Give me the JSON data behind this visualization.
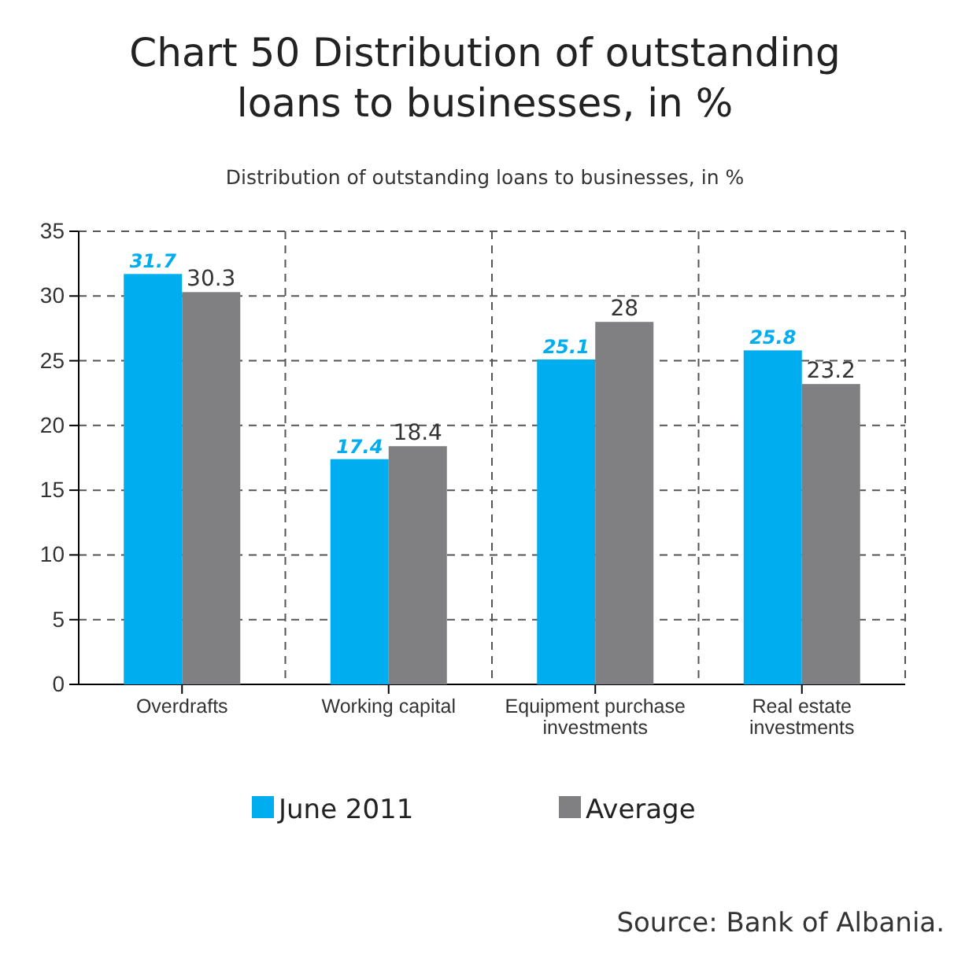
{
  "chart_data": {
    "type": "bar",
    "title": "Chart 50 Distribution of outstanding loans to businesses, in %",
    "subtitle": "Distribution of outstanding loans to businesses, in %",
    "categories": [
      "Overdrafts",
      "Working capital",
      "Equipment purchase investments",
      "Real estate investments"
    ],
    "series": [
      {
        "name": "June 2011",
        "color": "#00aeef",
        "values": [
          31.7,
          17.4,
          25.1,
          25.8
        ]
      },
      {
        "name": "Average",
        "color": "#808083",
        "values": [
          30.3,
          18.4,
          28,
          23.2
        ]
      }
    ],
    "ylim": [
      0,
      35
    ],
    "yticks": [
      0,
      5,
      10,
      15,
      20,
      25,
      30,
      35
    ],
    "grid": true,
    "legend": "bottom",
    "data_labels": true,
    "annotations": [
      "Source: Bank of Albania."
    ]
  }
}
